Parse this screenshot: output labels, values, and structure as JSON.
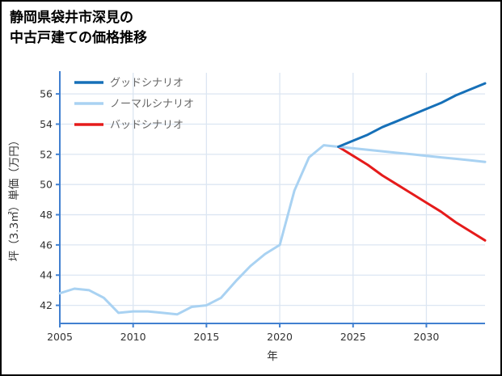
{
  "title": {
    "line1": "静岡県袋井市深見の",
    "line2": "中古戸建ての価格推移"
  },
  "colors": {
    "spine": "#4180d0",
    "grid": "#dce6f2",
    "tick_label": "#333333",
    "legend_text": "#666666",
    "good": "#1670b8",
    "normal": "#a9d2f2",
    "bad": "#e51b1b"
  },
  "chart_data": {
    "type": "line",
    "title": "静岡県袋井市深見の中古戸建ての価格推移",
    "xlabel": "年",
    "ylabel": "坪（3.3㎡）単価（万円）",
    "xlim": [
      2005,
      2034
    ],
    "ylim": [
      40.8,
      57.4
    ],
    "x_ticks": [
      2005,
      2010,
      2015,
      2020,
      2025,
      2030
    ],
    "y_ticks": [
      42,
      44,
      46,
      48,
      50,
      52,
      54,
      56
    ],
    "grid": true,
    "legend_position": "top-left",
    "series": [
      {
        "id": "good",
        "label": "グッドシナリオ",
        "color": "#1670b8",
        "x": [
          2024,
          2025,
          2026,
          2027,
          2028,
          2029,
          2030,
          2031,
          2032,
          2033,
          2034
        ],
        "y": [
          52.5,
          52.9,
          53.3,
          53.8,
          54.2,
          54.6,
          55.0,
          55.4,
          55.9,
          56.3,
          56.7
        ]
      },
      {
        "id": "normal",
        "label": "ノーマルシナリオ",
        "color": "#a9d2f2",
        "x": [
          2024,
          2025,
          2026,
          2027,
          2028,
          2029,
          2030,
          2031,
          2032,
          2033,
          2034
        ],
        "y": [
          52.5,
          52.4,
          52.3,
          52.2,
          52.1,
          52.0,
          51.9,
          51.8,
          51.7,
          51.6,
          51.5
        ]
      },
      {
        "id": "bad",
        "label": "バッドシナリオ",
        "color": "#e51b1b",
        "x": [
          2024,
          2025,
          2026,
          2027,
          2028,
          2029,
          2030,
          2031,
          2032,
          2033,
          2034
        ],
        "y": [
          52.5,
          51.9,
          51.3,
          50.6,
          50.0,
          49.4,
          48.8,
          48.2,
          47.5,
          46.9,
          46.3
        ]
      },
      {
        "id": "history",
        "label": "",
        "color": "#a9d2f2",
        "x": [
          2005,
          2006,
          2007,
          2008,
          2009,
          2010,
          2011,
          2012,
          2013,
          2014,
          2015,
          2016,
          2017,
          2018,
          2019,
          2020,
          2021,
          2022,
          2023,
          2024
        ],
        "y": [
          42.8,
          43.1,
          43.0,
          42.5,
          41.5,
          41.6,
          41.6,
          41.5,
          41.4,
          41.9,
          42.0,
          42.5,
          43.6,
          44.6,
          45.4,
          46.0,
          49.6,
          51.8,
          52.6,
          52.5
        ]
      }
    ]
  }
}
